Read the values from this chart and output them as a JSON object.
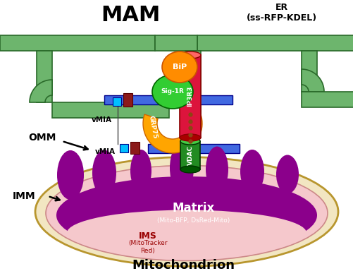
{
  "title": "Mitochondrion",
  "mam_label": "MAM",
  "er_label": "ER\n(ss-RFP-KDEL)",
  "omm_label": "OMM",
  "imm_label": "IMM",
  "matrix_label": "Matrix",
  "matrix_sublabel": "(Mito-BFP, DsRed-Mito)",
  "ims_label": "IMS",
  "ims_sublabel": "(MitoTracker\nRed)",
  "bip_label": "BiP",
  "sig1r_label": "Sig-1R",
  "ip3r3_label": "IP3R3",
  "grp75_label": "GRP75",
  "vdac_label": "VDAC",
  "vmia_label": "vMIA",
  "er_color": "#6db56d",
  "er_edge": "#2a6a2a",
  "mito_outer_color": "#f2e6c2",
  "mito_outer_edge": "#b8962e",
  "mito_inner_color": "#f5c8cc",
  "mito_matrix_color": "#8b008b",
  "bip_color": "#ff8c00",
  "sig1r_color": "#32cd32",
  "ip3r3_color": "#dc143c",
  "grp75_color": "#ffa500",
  "vdac_color": "#228b22",
  "blue_color": "#4169e1",
  "blue_edge": "#00008b",
  "vmia_dark_color": "#8b1a1a",
  "vmia_blue_color": "#00bfff",
  "dot_color": "#8b4513",
  "bg_color": "#ffffff",
  "black": "#000000"
}
